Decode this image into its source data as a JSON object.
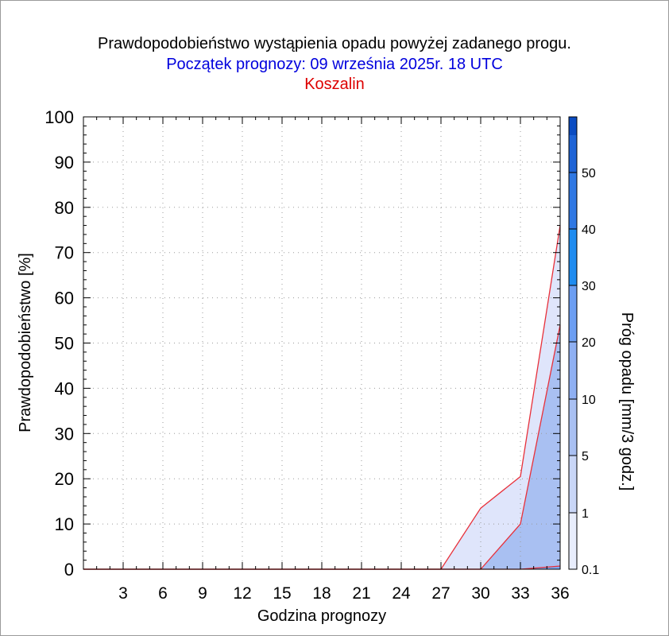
{
  "chart_data": {
    "type": "area",
    "title": "Prawdopodobieństwo wystąpienia opadu powyżej zadanego progu.",
    "subtitle": "Początek prognozy: 09 września 2025r. 18 UTC",
    "location": "Koszalin",
    "xlabel": "Godzina prognozy",
    "ylabel": "Prawdopodobieństwo [%]",
    "colorbar_label": "Próg opadu [mm/3 godz.]",
    "xlim": [
      0,
      36
    ],
    "ylim": [
      0,
      100
    ],
    "x_ticks": [
      "3",
      "6",
      "9",
      "12",
      "15",
      "18",
      "21",
      "24",
      "27",
      "30",
      "33",
      "36"
    ],
    "y_ticks": [
      "0",
      "10",
      "20",
      "30",
      "40",
      "50",
      "60",
      "70",
      "80",
      "90",
      "100"
    ],
    "grid": true,
    "x": [
      0,
      3,
      6,
      9,
      12,
      15,
      18,
      21,
      24,
      27,
      30,
      33,
      36
    ],
    "series": [
      {
        "name": "0.1",
        "color": "#dfe5fb",
        "values": [
          0,
          0,
          0,
          0,
          0,
          0,
          0,
          0,
          0,
          0,
          13.5,
          20.5,
          76
        ]
      },
      {
        "name": "1",
        "color": "#a9c0f2",
        "values": [
          0,
          0,
          0,
          0,
          0,
          0,
          0,
          0,
          0,
          0,
          0,
          10,
          54
        ]
      },
      {
        "name": "5",
        "color": "#7da8f0",
        "values": [
          0,
          0,
          0,
          0,
          0,
          0,
          0,
          0,
          0,
          0,
          0,
          0,
          0.7
        ]
      }
    ],
    "line_color": "#e8303a",
    "colorbar": {
      "tick_labels": [
        "0.1",
        "1",
        "5",
        "10",
        "20",
        "30",
        "40",
        "50"
      ],
      "colors": [
        "#e8edfc",
        "#c9d6f7",
        "#a9c0f2",
        "#8fb0f3",
        "#6c9ef2",
        "#1f8cf0",
        "#2f78e3",
        "#1e63d6",
        "#0b4cc2",
        "#06359f"
      ]
    }
  }
}
